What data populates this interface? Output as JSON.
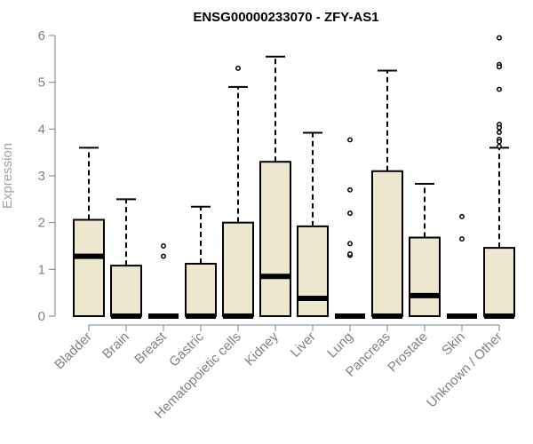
{
  "chart_data": {
    "type": "boxplot",
    "title": "ENSG00000233070 - ZFY-AS1",
    "xlabel": "",
    "ylabel": "Expression",
    "ylim": [
      0,
      6
    ],
    "yticks": [
      0,
      1,
      2,
      3,
      4,
      5,
      6
    ],
    "grid": false,
    "colors": {
      "box_fill": "#EDE7CF",
      "box_stroke": "#000000",
      "axis": "#808080"
    },
    "categories": [
      "Bladder",
      "Brain",
      "Breast",
      "Gastric",
      "Hematopoietic cells",
      "Kidney",
      "Liver",
      "Lung",
      "Pancreas",
      "Prostate",
      "Skin",
      "Unknown / Other"
    ],
    "boxes": [
      {
        "category": "Bladder",
        "min": 0,
        "q1": 0,
        "median": 1.28,
        "q3": 2.06,
        "max": 3.6,
        "outliers": []
      },
      {
        "category": "Brain",
        "min": 0,
        "q1": 0,
        "median": 0,
        "q3": 1.08,
        "max": 2.5,
        "outliers": []
      },
      {
        "category": "Breast",
        "min": 0,
        "q1": 0,
        "median": 0,
        "q3": 0,
        "max": 0,
        "outliers": [
          1.5,
          1.28
        ]
      },
      {
        "category": "Gastric",
        "min": 0,
        "q1": 0,
        "median": 0,
        "q3": 1.12,
        "max": 2.34,
        "outliers": []
      },
      {
        "category": "Hematopoietic cells",
        "min": 0,
        "q1": 0,
        "median": 0,
        "q3": 2.0,
        "max": 4.9,
        "outliers": [
          5.3
        ]
      },
      {
        "category": "Kidney",
        "min": 0,
        "q1": 0,
        "median": 0.85,
        "q3": 3.3,
        "max": 5.55,
        "outliers": []
      },
      {
        "category": "Liver",
        "min": 0,
        "q1": 0,
        "median": 0.38,
        "q3": 1.92,
        "max": 3.92,
        "outliers": []
      },
      {
        "category": "Lung",
        "min": 0,
        "q1": 0,
        "median": 0,
        "q3": 0,
        "max": 0,
        "outliers": [
          3.77,
          2.7,
          2.2,
          1.55,
          1.3,
          1.33
        ]
      },
      {
        "category": "Pancreas",
        "min": 0,
        "q1": 0,
        "median": 0,
        "q3": 3.1,
        "max": 5.25,
        "outliers": []
      },
      {
        "category": "Prostate",
        "min": 0,
        "q1": 0,
        "median": 0.44,
        "q3": 1.68,
        "max": 2.83,
        "outliers": []
      },
      {
        "category": "Skin",
        "min": 0,
        "q1": 0,
        "median": 0,
        "q3": 0,
        "max": 0,
        "outliers": [
          2.13,
          1.65
        ]
      },
      {
        "category": "Unknown / Other",
        "min": 0,
        "q1": 0,
        "median": 0,
        "q3": 1.46,
        "max": 3.6,
        "outliers": [
          5.95,
          5.38,
          5.33,
          4.85,
          4.1,
          4.03,
          3.93,
          3.78,
          3.73,
          3.63
        ]
      }
    ]
  }
}
